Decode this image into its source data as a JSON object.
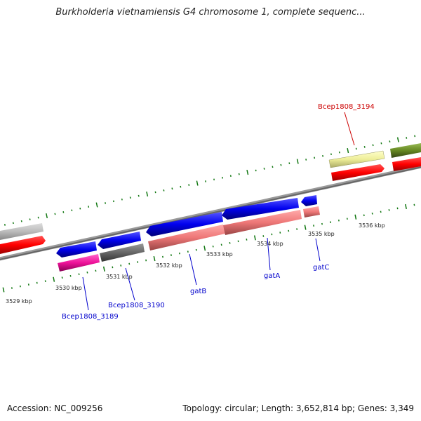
{
  "title": "Burkholderia vietnamiensis G4 chromosome 1, complete sequenc...",
  "footer": {
    "accession": "Accession: NC_009256",
    "summary": "Topology: circular; Length: 3,652,814 bp; Genes: 3,349"
  },
  "ticks": [
    "3529 kbp",
    "3530 kbp",
    "3531 kbp",
    "3532 kbp",
    "3533 kbp",
    "3534 kbp",
    "3535 kbp",
    "3536 kbp"
  ],
  "gene_labels": {
    "bcep3194": "Bcep1808_3194",
    "bcep3189": "Bcep1808_3189",
    "bcep3190": "Bcep1808_3190",
    "gatB": "gatB",
    "gatA": "gatA",
    "gatC": "gatC"
  },
  "colors": {
    "cds_forward": "#ff0000",
    "cds_reverse": "#0000ee",
    "rrna_pink": "#ee7777",
    "magenta": "#ee1199",
    "grey_gene": "#666666",
    "light_grey_gene": "#bbbbbb",
    "yellow_gene": "#eeee99",
    "olive_gene": "#668822",
    "label_red": "#cc0000",
    "label_blue": "#0000cc",
    "backbone": "#777777",
    "tick_green": "#117711"
  }
}
